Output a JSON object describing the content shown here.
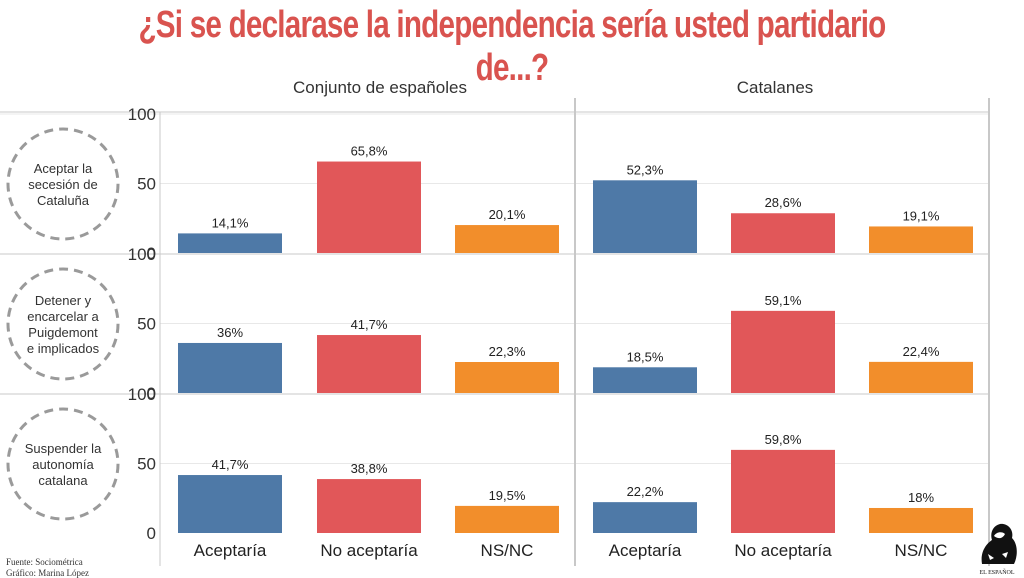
{
  "title": "¿Si se declarase la independencia sería usted partidario de...?",
  "footer": {
    "source": "Fuente: Sociométrica",
    "credit": "Gráfico: Marina López"
  },
  "logo_text": "EL ESPAÑOL",
  "colors": {
    "title": "#d9534f",
    "Aceptaría": "#4e79a7",
    "No aceptaría": "#e15759",
    "NS/NC": "#f28e2b",
    "grid": "#e8e8e8",
    "divider": "#c8c8c8",
    "circle": "#9a9a9a"
  },
  "chart_data": {
    "type": "bar",
    "columns": [
      "Conjunto de españoles",
      "Catalanes"
    ],
    "rows": [
      "Aceptar la secesión de Cataluña",
      "Detener y encarcelar a Puigdemont e implicados",
      "Suspender la autonomía catalana"
    ],
    "row_label_lines": [
      [
        "Aceptar la",
        "secesión de",
        "Cataluña"
      ],
      [
        "Detener y",
        "encarcelar a",
        "Puigdemont",
        "e implicados"
      ],
      [
        "Suspender la",
        "autonomía",
        "catalana"
      ]
    ],
    "categories": [
      "Aceptaría",
      "No aceptaría",
      "NS/NC"
    ],
    "yticks": [
      0,
      50,
      100
    ],
    "ylim": [
      0,
      100
    ],
    "panels": [
      {
        "row": 0,
        "col": 0,
        "values": [
          14.1,
          65.8,
          20.1
        ],
        "labels": [
          "14,1%",
          "65,8%",
          "20,1%"
        ]
      },
      {
        "row": 0,
        "col": 1,
        "values": [
          52.3,
          28.6,
          19.1
        ],
        "labels": [
          "52,3%",
          "28,6%",
          "19,1%"
        ]
      },
      {
        "row": 1,
        "col": 0,
        "values": [
          36,
          41.7,
          22.3
        ],
        "labels": [
          "36%",
          "41,7%",
          "22,3%"
        ]
      },
      {
        "row": 1,
        "col": 1,
        "values": [
          18.5,
          59.1,
          22.4
        ],
        "labels": [
          "18,5%",
          "59,1%",
          "22,4%"
        ]
      },
      {
        "row": 2,
        "col": 0,
        "values": [
          41.7,
          38.8,
          19.5
        ],
        "labels": [
          "41,7%",
          "38,8%",
          "19,5%"
        ]
      },
      {
        "row": 2,
        "col": 1,
        "values": [
          22.2,
          59.8,
          18
        ],
        "labels": [
          "22,2%",
          "59,8%",
          "18%"
        ]
      }
    ]
  }
}
